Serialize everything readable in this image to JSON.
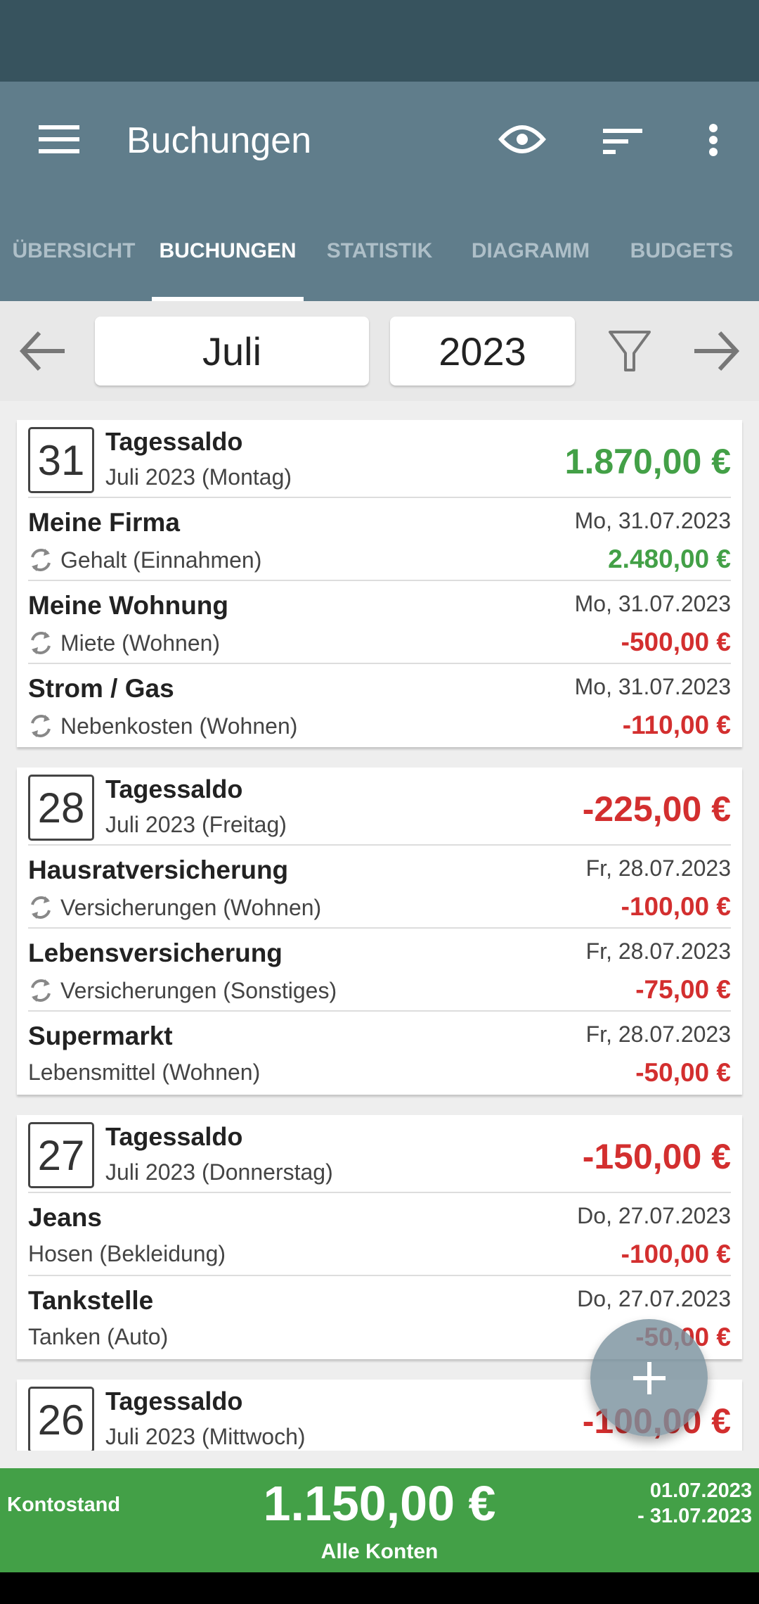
{
  "appbar": {
    "title": "Buchungen",
    "icons": [
      "menu-icon",
      "eye-icon",
      "sort-icon",
      "more-vert-icon"
    ]
  },
  "tabs": [
    {
      "label": "ÜBERSICHT"
    },
    {
      "label": "BUCHUNGEN",
      "active": true
    },
    {
      "label": "STATISTIK"
    },
    {
      "label": "DIAGRAMM"
    },
    {
      "label": "BUDGETS"
    }
  ],
  "datebar": {
    "month": "Juli",
    "year": "2023"
  },
  "colors": {
    "positive": "#43a047",
    "negative": "#d32f2f",
    "appbar": "#607d8b",
    "statusbar": "#37535e"
  },
  "days": [
    {
      "day": "31",
      "title": "Tagessaldo",
      "subtitle": "Juli 2023 (Montag)",
      "amount": "1.870,00 €",
      "positive": true,
      "entries": [
        {
          "name": "Meine Firma",
          "category": "Gehalt (Einnahmen)",
          "recurring": true,
          "date": "Mo, 31.07.2023",
          "amount": "2.480,00 €",
          "positive": true
        },
        {
          "name": "Meine Wohnung",
          "category": "Miete (Wohnen)",
          "recurring": true,
          "date": "Mo, 31.07.2023",
          "amount": "-500,00 €",
          "positive": false
        },
        {
          "name": "Strom / Gas",
          "category": "Nebenkosten (Wohnen)",
          "recurring": true,
          "date": "Mo, 31.07.2023",
          "amount": "-110,00 €",
          "positive": false
        }
      ]
    },
    {
      "day": "28",
      "title": "Tagessaldo",
      "subtitle": "Juli 2023 (Freitag)",
      "amount": "-225,00 €",
      "positive": false,
      "entries": [
        {
          "name": "Hausratversicherung",
          "category": "Versicherungen (Wohnen)",
          "recurring": true,
          "date": "Fr, 28.07.2023",
          "amount": "-100,00 €",
          "positive": false
        },
        {
          "name": "Lebensversicherung",
          "category": "Versicherungen (Sonstiges)",
          "recurring": true,
          "date": "Fr, 28.07.2023",
          "amount": "-75,00 €",
          "positive": false
        },
        {
          "name": "Supermarkt",
          "category": "Lebensmittel (Wohnen)",
          "recurring": false,
          "date": "Fr, 28.07.2023",
          "amount": "-50,00 €",
          "positive": false
        }
      ]
    },
    {
      "day": "27",
      "title": "Tagessaldo",
      "subtitle": "Juli 2023 (Donnerstag)",
      "amount": "-150,00 €",
      "positive": false,
      "entries": [
        {
          "name": "Jeans",
          "category": "Hosen (Bekleidung)",
          "recurring": false,
          "date": "Do, 27.07.2023",
          "amount": "-100,00 €",
          "positive": false
        },
        {
          "name": "Tankstelle",
          "category": "Tanken (Auto)",
          "recurring": false,
          "date": "Do, 27.07.2023",
          "amount": "-50,00 €",
          "positive": false
        }
      ]
    },
    {
      "day": "26",
      "title": "Tagessaldo",
      "subtitle": "Juli 2023 (Mittwoch)",
      "amount": "-100,00 €",
      "positive": false,
      "entries": []
    }
  ],
  "footer": {
    "label": "Kontostand",
    "balance": "1.150,00 €",
    "account": "Alle Konten",
    "range_start": "01.07.2023",
    "range_end": "- 31.07.2023"
  }
}
